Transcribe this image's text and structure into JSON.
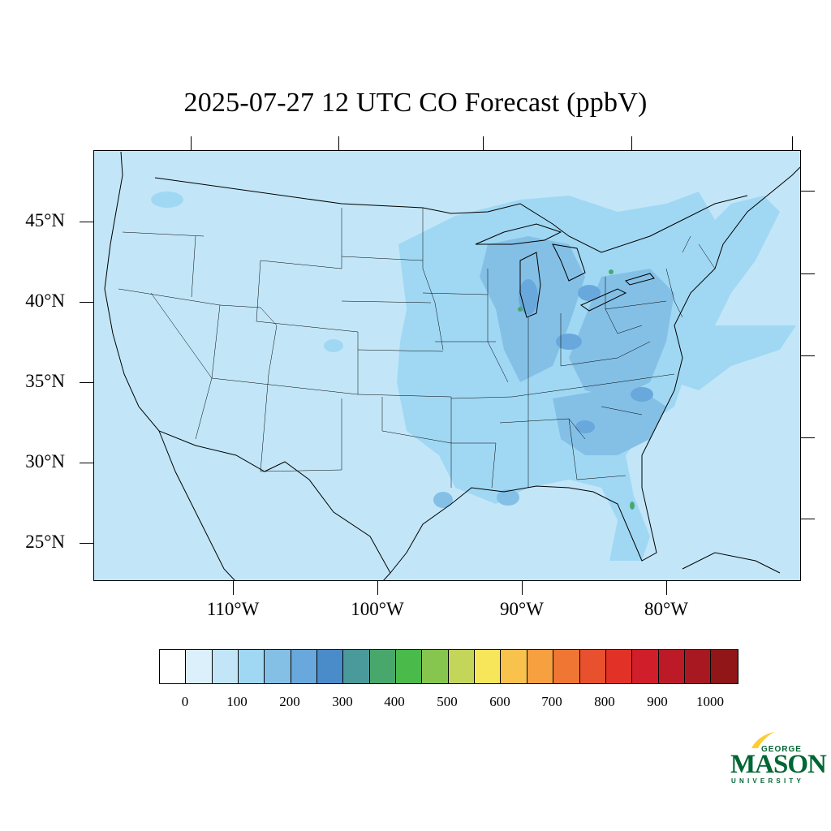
{
  "title": "2025-07-27 12 UTC CO Forecast (ppbV)",
  "map": {
    "background_color": "#c2e6f8",
    "lat_labels": [
      "45°N",
      "40°N",
      "35°N",
      "30°N",
      "25°N"
    ],
    "lon_labels": [
      "110°W",
      "100°W",
      "90°W",
      "80°W"
    ]
  },
  "colorbar": {
    "colors": [
      "#ffffff",
      "#dcf0fb",
      "#c2e6f8",
      "#a0d8f4",
      "#84c0e6",
      "#68a8dc",
      "#4a8cca",
      "#4a9a9c",
      "#48a86c",
      "#4aba4a",
      "#86c64e",
      "#c4d65a",
      "#f7e65a",
      "#f8c24c",
      "#f6a040",
      "#f07634",
      "#e8502e",
      "#e23228",
      "#d01e2a",
      "#bc1a26",
      "#a81820",
      "#901618"
    ],
    "labels": [
      "0",
      "100",
      "200",
      "300",
      "400",
      "500",
      "600",
      "700",
      "800",
      "900",
      "1000"
    ]
  },
  "logo": {
    "line1": "GEORGE",
    "line2": "MASON",
    "line3": "UNIVERSITY",
    "green": "#006633",
    "gold": "#ffcc33"
  }
}
